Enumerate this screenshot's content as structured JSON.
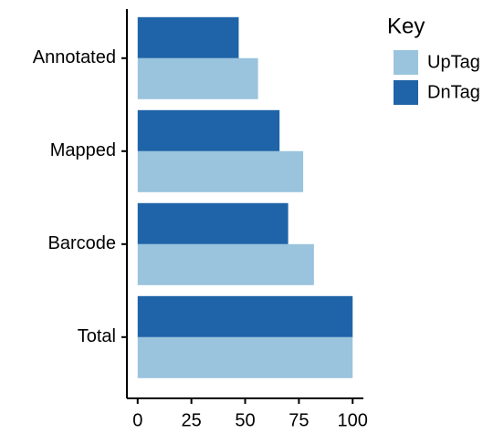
{
  "chart_data": {
    "type": "bar",
    "orientation": "horizontal",
    "categories": [
      "Annotated",
      "Mapped",
      "Barcode",
      "Total"
    ],
    "series": [
      {
        "name": "UpTag",
        "color": "#9ac4dd",
        "values": [
          56,
          77,
          82,
          100
        ]
      },
      {
        "name": "DnTag",
        "color": "#1f64a8",
        "values": [
          47,
          66,
          70,
          100
        ]
      }
    ],
    "legend_title": "Key",
    "xlim": [
      -5,
      105
    ],
    "xticks": [
      0,
      25,
      50,
      75,
      100
    ]
  }
}
